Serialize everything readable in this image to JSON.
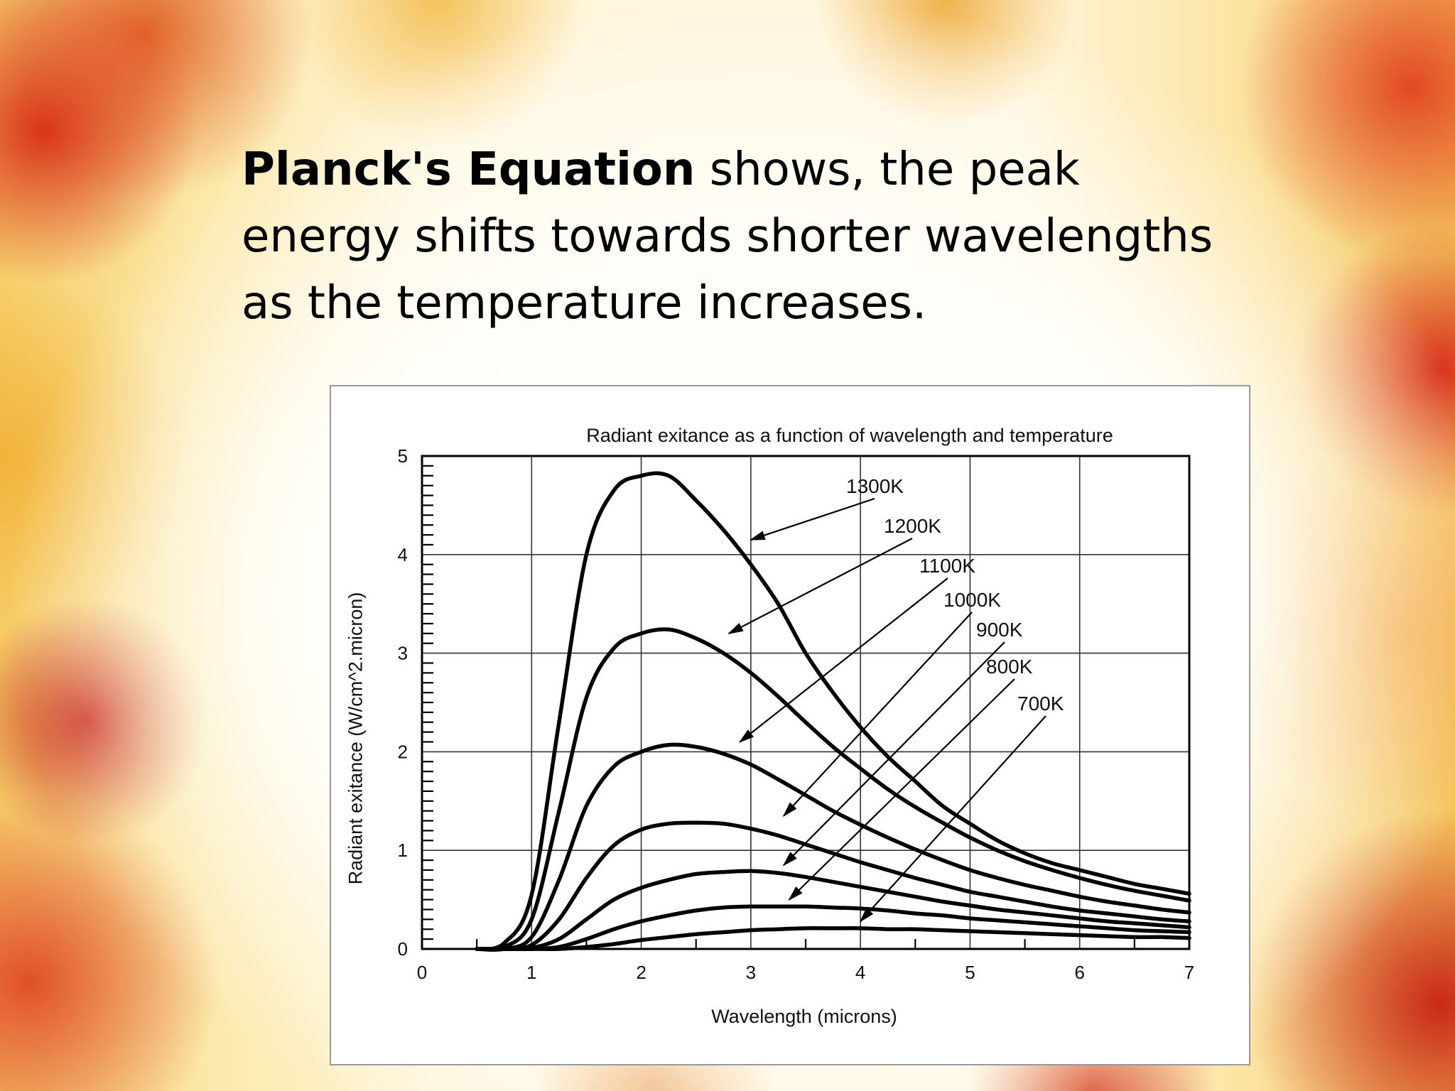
{
  "slide": {
    "bold_text": "Planck's Equation",
    "body_text": " shows, the peak energy shifts towards shorter wavelengths as the temperature increases."
  },
  "chart_data": {
    "type": "line",
    "title": "Radiant exitance as a function of wavelength and temperature",
    "xlabel": "Wavelength (microns)",
    "ylabel": "Radiant exitance (W/cm^2.micron)",
    "xlim": [
      0,
      7
    ],
    "ylim": [
      0,
      5
    ],
    "x_ticks": [
      "0",
      "1",
      "2",
      "3",
      "4",
      "5",
      "6",
      "7"
    ],
    "y_ticks": [
      "0",
      "1",
      "2",
      "3",
      "4",
      "5"
    ],
    "grid": true,
    "legend": "arrow-labels",
    "x": [
      0.5,
      0.75,
      1.0,
      1.25,
      1.5,
      1.75,
      2.0,
      2.25,
      2.5,
      2.75,
      3.0,
      3.25,
      3.5,
      3.75,
      4.0,
      4.25,
      4.5,
      4.75,
      5.0,
      5.25,
      5.5,
      5.75,
      6.0,
      6.25,
      6.5,
      6.75,
      7.0
    ],
    "series": [
      {
        "name": "1300K",
        "values": [
          0,
          0.06,
          0.55,
          2.3,
          4.0,
          4.65,
          4.8,
          4.8,
          4.55,
          4.25,
          3.9,
          3.5,
          3.0,
          2.6,
          2.25,
          1.95,
          1.7,
          1.45,
          1.27,
          1.1,
          0.97,
          0.87,
          0.8,
          0.73,
          0.66,
          0.61,
          0.56
        ]
      },
      {
        "name": "1200K",
        "values": [
          0,
          0.02,
          0.3,
          1.4,
          2.55,
          3.05,
          3.2,
          3.24,
          3.15,
          3.0,
          2.8,
          2.56,
          2.3,
          2.05,
          1.83,
          1.62,
          1.44,
          1.28,
          1.13,
          1.0,
          0.89,
          0.8,
          0.72,
          0.65,
          0.59,
          0.54,
          0.49
        ]
      },
      {
        "name": "1100K",
        "values": [
          0,
          0.0,
          0.12,
          0.7,
          1.45,
          1.85,
          2.0,
          2.07,
          2.05,
          1.98,
          1.87,
          1.72,
          1.56,
          1.4,
          1.26,
          1.13,
          1.01,
          0.9,
          0.8,
          0.72,
          0.65,
          0.59,
          0.53,
          0.48,
          0.44,
          0.4,
          0.37
        ]
      },
      {
        "name": "1000K",
        "values": [
          0,
          0.0,
          0.04,
          0.3,
          0.72,
          1.05,
          1.21,
          1.27,
          1.28,
          1.27,
          1.22,
          1.15,
          1.06,
          0.97,
          0.88,
          0.8,
          0.72,
          0.65,
          0.58,
          0.53,
          0.48,
          0.43,
          0.39,
          0.36,
          0.33,
          0.3,
          0.28
        ]
      },
      {
        "name": "900K",
        "values": [
          0,
          0.0,
          0.01,
          0.1,
          0.3,
          0.5,
          0.62,
          0.7,
          0.76,
          0.78,
          0.79,
          0.77,
          0.73,
          0.68,
          0.63,
          0.58,
          0.53,
          0.48,
          0.44,
          0.4,
          0.37,
          0.34,
          0.31,
          0.28,
          0.26,
          0.24,
          0.22
        ]
      },
      {
        "name": "800K",
        "values": [
          0,
          0.0,
          0.0,
          0.02,
          0.1,
          0.2,
          0.28,
          0.34,
          0.39,
          0.42,
          0.43,
          0.43,
          0.43,
          0.42,
          0.41,
          0.39,
          0.36,
          0.34,
          0.31,
          0.29,
          0.27,
          0.25,
          0.23,
          0.21,
          0.19,
          0.18,
          0.17
        ]
      },
      {
        "name": "700K",
        "values": [
          0,
          0.0,
          0.0,
          0.0,
          0.02,
          0.05,
          0.09,
          0.12,
          0.15,
          0.17,
          0.19,
          0.2,
          0.21,
          0.21,
          0.21,
          0.2,
          0.2,
          0.19,
          0.18,
          0.17,
          0.16,
          0.15,
          0.14,
          0.13,
          0.12,
          0.12,
          0.11
        ]
      }
    ],
    "annotations": [
      {
        "text": "1300K",
        "arrow_to": [
          3.0,
          4.15
        ]
      },
      {
        "text": "1200K",
        "arrow_to": [
          2.8,
          3.2
        ]
      },
      {
        "text": "1100K",
        "arrow_to": [
          2.9,
          2.1
        ]
      },
      {
        "text": "1000K",
        "arrow_to": [
          3.3,
          1.35
        ]
      },
      {
        "text": "900K",
        "arrow_to": [
          3.3,
          0.85
        ]
      },
      {
        "text": "800K",
        "arrow_to": [
          3.35,
          0.5
        ]
      },
      {
        "text": "700K",
        "arrow_to": [
          4.0,
          0.28
        ]
      }
    ]
  }
}
